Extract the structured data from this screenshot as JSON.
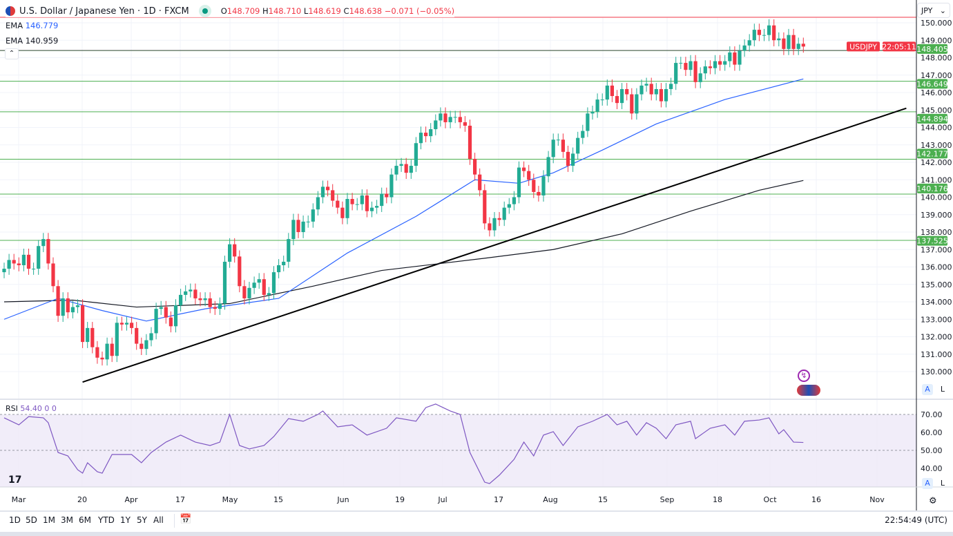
{
  "header": {
    "title": "U.S. Dollar / Japanese Yen · 1D · FXCM",
    "open_label": "O",
    "open": "148.709",
    "high_label": "H",
    "high": "148.710",
    "low_label": "L",
    "low": "148.619",
    "close_label": "C",
    "close": "148.638",
    "change": "−0.071 (−0.05%)"
  },
  "indicators": {
    "ema1": {
      "label": "EMA",
      "value": "146.779",
      "color": "#2962ff"
    },
    "ema2": {
      "label": "EMA",
      "value": "140.959",
      "color": "#131722"
    },
    "rsi": {
      "label": "RSI",
      "value": "54.40",
      "extra1": "0",
      "extra2": "0",
      "color": "#7e57c2"
    }
  },
  "currency_select": "JPY",
  "symbol_tag": "USDJPY",
  "countdown": "22:05:11",
  "colors": {
    "up": "#22ab94",
    "down": "#f23645",
    "level": "#4caf50"
  },
  "chart_data": [
    {
      "type": "candlestick",
      "symbol": "USDJPY",
      "ylim": [
        129.5,
        150.5
      ],
      "y_ticks": [
        "130.000",
        "131.000",
        "132.000",
        "133.000",
        "134.000",
        "135.000",
        "136.000",
        "137.000",
        "138.000",
        "139.000",
        "140.000",
        "141.000",
        "142.000",
        "143.000",
        "144.000",
        "145.000",
        "146.000",
        "147.000",
        "148.000",
        "149.000",
        "150.000"
      ],
      "x_ticks": [
        "Mar",
        "20",
        "Apr",
        "17",
        "May",
        "15",
        "Jun",
        "19",
        "Jul",
        "17",
        "Aug",
        "15",
        "Sep",
        "18",
        "Oct",
        "16",
        "Nov"
      ],
      "close": [
        135.9,
        136.4,
        136.2,
        136.1,
        136.7,
        135.9,
        135.9,
        137.2,
        137.6,
        136.2,
        134.9,
        133.2,
        134.2,
        133.4,
        133.7,
        133.8,
        131.7,
        132.5,
        131.4,
        130.8,
        130.7,
        131.6,
        130.9,
        132.8,
        132.7,
        132.8,
        132.5,
        131.6,
        131.3,
        131.8,
        132.2,
        133.6,
        133.7,
        133.1,
        132.6,
        133.8,
        134.4,
        134.6,
        134.7,
        134.2,
        134.1,
        134.2,
        133.7,
        133.6,
        133.9,
        136.3,
        137.3,
        136.6,
        134.9,
        134.2,
        134.8,
        135.1,
        135.3,
        134.4,
        134.5,
        135.7,
        136.1,
        136.3,
        137.6,
        138.7,
        138.0,
        138.6,
        138.6,
        139.3,
        140.0,
        140.6,
        140.4,
        139.8,
        139.4,
        138.8,
        139.9,
        139.6,
        139.6,
        140.1,
        139.2,
        139.4,
        139.5,
        140.2,
        140.0,
        141.3,
        141.8,
        141.9,
        141.4,
        141.8,
        143.1,
        143.7,
        143.5,
        143.9,
        144.4,
        144.8,
        144.3,
        144.6,
        144.6,
        144.3,
        144.1,
        142.2,
        141.3,
        140.4,
        138.5,
        138.1,
        138.8,
        138.7,
        139.4,
        139.6,
        140.0,
        141.7,
        141.5,
        141.0,
        140.3,
        140.1,
        141.2,
        142.3,
        143.3,
        143.3,
        142.6,
        141.8,
        142.5,
        143.4,
        143.8,
        144.8,
        144.9,
        145.6,
        145.6,
        146.4,
        145.8,
        145.4,
        146.2,
        145.9,
        144.8,
        145.9,
        146.4,
        146.5,
        145.9,
        146.2,
        145.5,
        146.2,
        146.5,
        147.7,
        147.7,
        147.3,
        147.8,
        146.6,
        147.1,
        147.5,
        147.4,
        147.8,
        147.6,
        147.8,
        148.3,
        147.6,
        148.4,
        148.7,
        149.0,
        149.6,
        149.3,
        149.3,
        149.85,
        149.0,
        149.1,
        148.5,
        149.3,
        148.5,
        148.8,
        148.638
      ],
      "ema_50": [
        [
          0,
          133.0
        ],
        [
          11,
          134.2
        ],
        [
          20,
          133.5
        ],
        [
          29,
          132.9
        ],
        [
          41,
          133.6
        ],
        [
          56,
          134.2
        ],
        [
          70,
          136.8
        ],
        [
          84,
          138.9
        ],
        [
          96,
          141.0
        ],
        [
          105,
          140.8
        ],
        [
          112,
          141.4
        ],
        [
          122,
          142.7
        ],
        [
          133,
          144.2
        ],
        [
          147,
          145.6
        ],
        [
          163,
          146.779
        ]
      ],
      "ema_200": [
        [
          0,
          134.0
        ],
        [
          14,
          134.1
        ],
        [
          27,
          133.7
        ],
        [
          46,
          133.9
        ],
        [
          63,
          134.9
        ],
        [
          77,
          135.8
        ],
        [
          98,
          136.5
        ],
        [
          112,
          137.0
        ],
        [
          126,
          137.9
        ],
        [
          140,
          139.2
        ],
        [
          154,
          140.4
        ],
        [
          163,
          140.959
        ]
      ],
      "trendline": [
        [
          16,
          129.4
        ],
        [
          184,
          145.1
        ]
      ],
      "levels": [
        "148.405",
        "146.649",
        "144.894",
        "142.177",
        "140.176",
        "137.525"
      ],
      "price_line": 148.638
    },
    {
      "type": "line",
      "name": "RSI",
      "ylim": [
        30,
        78
      ],
      "y_ticks": [
        "40.00",
        "50.00",
        "60.00",
        "70.00"
      ],
      "bands": [
        30,
        70
      ],
      "points": [
        [
          0,
          68.1
        ],
        [
          3,
          64.2
        ],
        [
          5,
          68.8
        ],
        [
          8,
          68.1
        ],
        [
          9,
          65.4
        ],
        [
          11,
          48.8
        ],
        [
          13,
          46.9
        ],
        [
          15,
          39.2
        ],
        [
          16,
          37.3
        ],
        [
          17,
          43.1
        ],
        [
          19,
          38.1
        ],
        [
          20,
          37.3
        ],
        [
          22,
          47.7
        ],
        [
          26,
          47.7
        ],
        [
          28,
          43.1
        ],
        [
          30,
          48.8
        ],
        [
          33,
          54.6
        ],
        [
          36,
          58.5
        ],
        [
          39,
          54.6
        ],
        [
          42,
          52.7
        ],
        [
          44,
          54.6
        ],
        [
          46,
          70.0
        ],
        [
          48,
          52.7
        ],
        [
          50,
          50.8
        ],
        [
          53,
          52.7
        ],
        [
          55,
          57.7
        ],
        [
          58,
          67.7
        ],
        [
          61,
          66.2
        ],
        [
          64,
          70.0
        ],
        [
          65,
          71.9
        ],
        [
          68,
          63.1
        ],
        [
          71,
          64.2
        ],
        [
          74,
          58.5
        ],
        [
          78,
          62.3
        ],
        [
          80,
          68.1
        ],
        [
          84,
          66.2
        ],
        [
          86,
          73.8
        ],
        [
          88,
          75.8
        ],
        [
          91,
          71.9
        ],
        [
          93,
          70.0
        ],
        [
          95,
          48.8
        ],
        [
          98,
          32.3
        ],
        [
          99,
          31.5
        ],
        [
          101,
          36.2
        ],
        [
          104,
          45.0
        ],
        [
          106,
          54.6
        ],
        [
          108,
          46.9
        ],
        [
          110,
          58.5
        ],
        [
          112,
          60.4
        ],
        [
          114,
          52.7
        ],
        [
          117,
          63.1
        ],
        [
          120,
          66.2
        ],
        [
          123,
          70.0
        ],
        [
          125,
          64.2
        ],
        [
          127,
          66.2
        ],
        [
          129,
          58.5
        ],
        [
          131,
          65.4
        ],
        [
          133,
          62.3
        ],
        [
          135,
          56.5
        ],
        [
          137,
          64.2
        ],
        [
          140,
          66.2
        ],
        [
          141,
          56.5
        ],
        [
          144,
          62.3
        ],
        [
          147,
          64.2
        ],
        [
          149,
          58.5
        ],
        [
          151,
          66.2
        ],
        [
          154,
          66.9
        ],
        [
          156,
          68.1
        ],
        [
          158,
          59.2
        ],
        [
          159,
          61.5
        ],
        [
          161,
          54.6
        ],
        [
          163,
          54.4
        ]
      ]
    }
  ],
  "toolbar": {
    "timeframes": [
      "1D",
      "5D",
      "1M",
      "3M",
      "6M",
      "YTD",
      "1Y",
      "5Y",
      "All"
    ],
    "clock": "22:54:49 (UTC)",
    "auto_label": "A",
    "log_label": "L"
  }
}
